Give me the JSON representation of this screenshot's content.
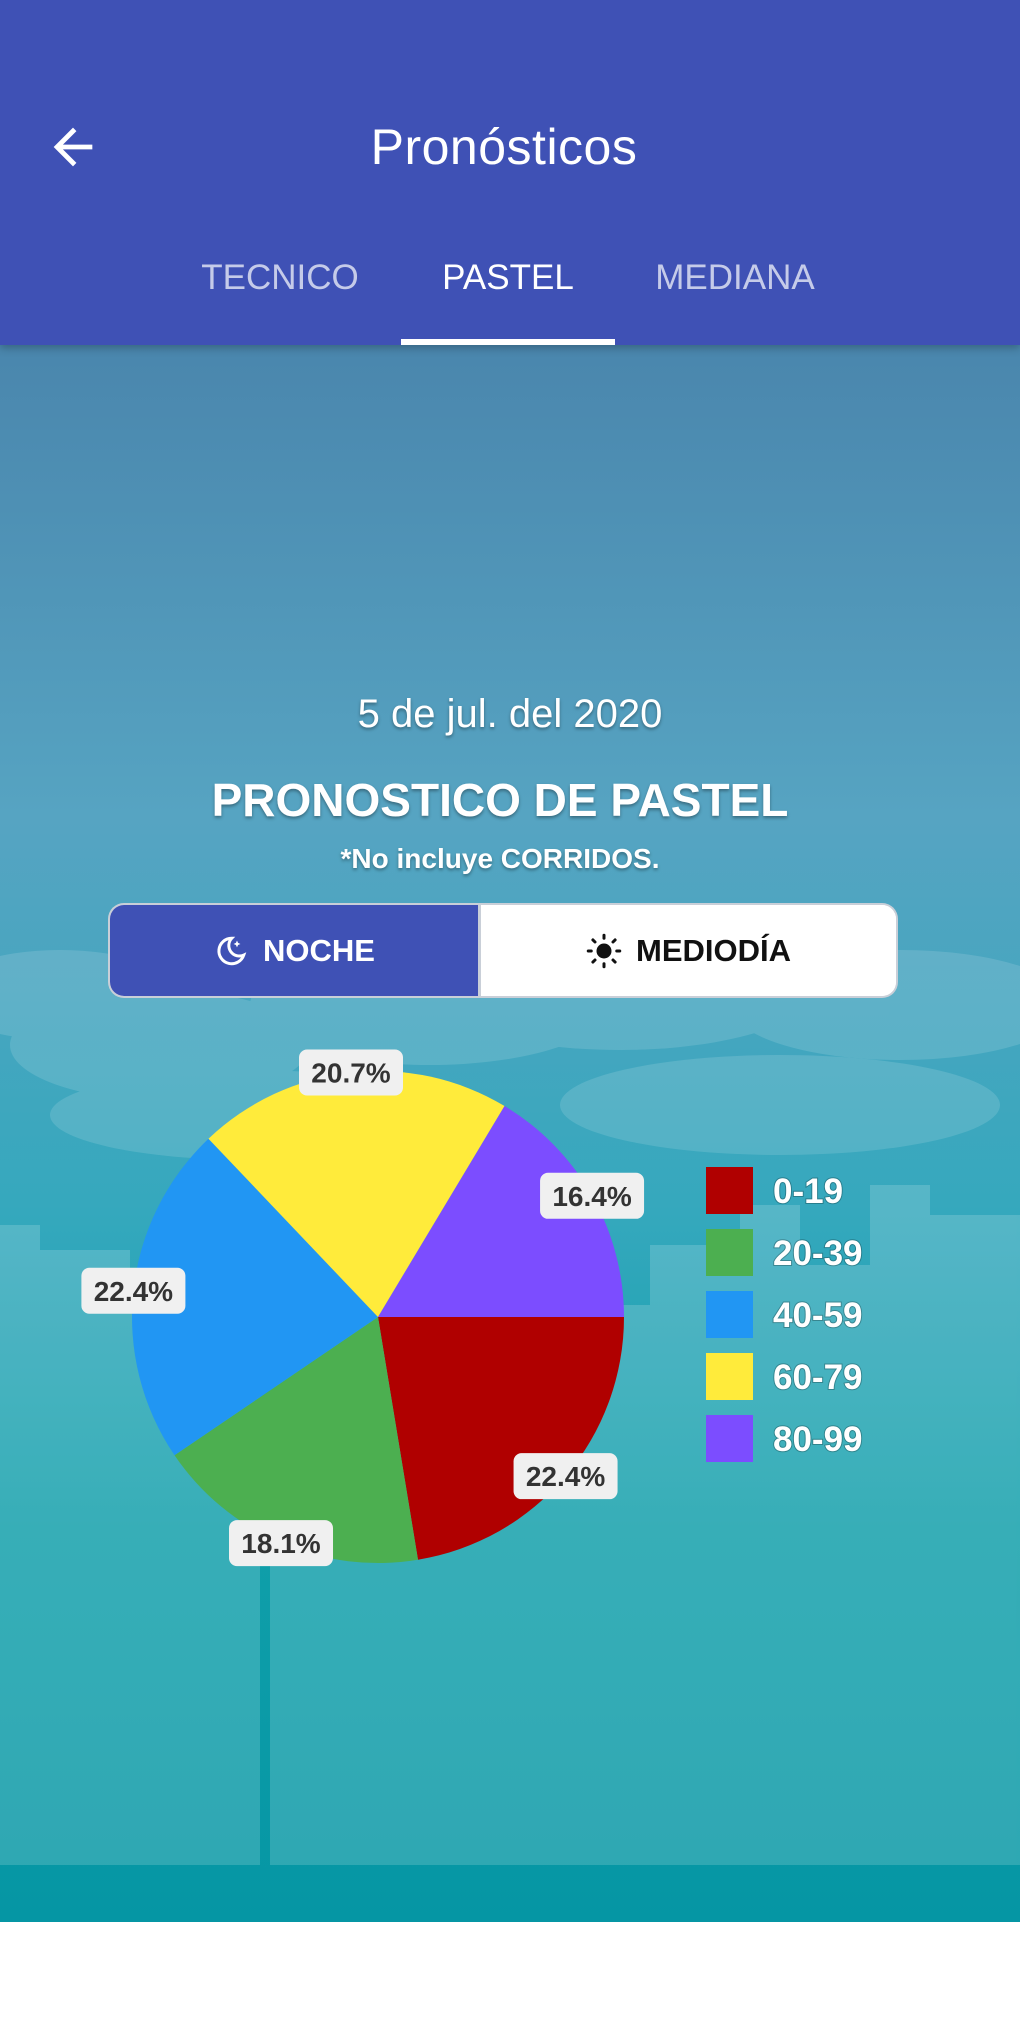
{
  "appbar": {
    "title": "Pronósticos",
    "tabs": [
      {
        "label": "TECNICO",
        "active": false
      },
      {
        "label": "PASTEL",
        "active": true
      },
      {
        "label": "MEDIANA",
        "active": false
      }
    ]
  },
  "content": {
    "date": "5 de jul. del 2020",
    "heading": "PRONOSTICO DE PASTEL",
    "note": "*No incluye CORRIDOS."
  },
  "toggle": {
    "noche_label": "NOCHE",
    "mediodia_label": "MEDIODÍA",
    "selected": "NOCHE"
  },
  "colors": {
    "primary": "#3f51b5",
    "white": "#ffffff"
  },
  "chart_data": {
    "type": "pie",
    "categories": [
      "0-19",
      "20-39",
      "40-59",
      "60-79",
      "80-99"
    ],
    "values": [
      22.4,
      18.1,
      22.4,
      20.7,
      16.4
    ],
    "labels": [
      "22.4%",
      "18.1%",
      "22.4%",
      "20.7%",
      "16.4%"
    ],
    "colors": [
      "#b00000",
      "#4caf50",
      "#2196f3",
      "#ffeb3b",
      "#7c4dff"
    ],
    "legend": "right"
  }
}
